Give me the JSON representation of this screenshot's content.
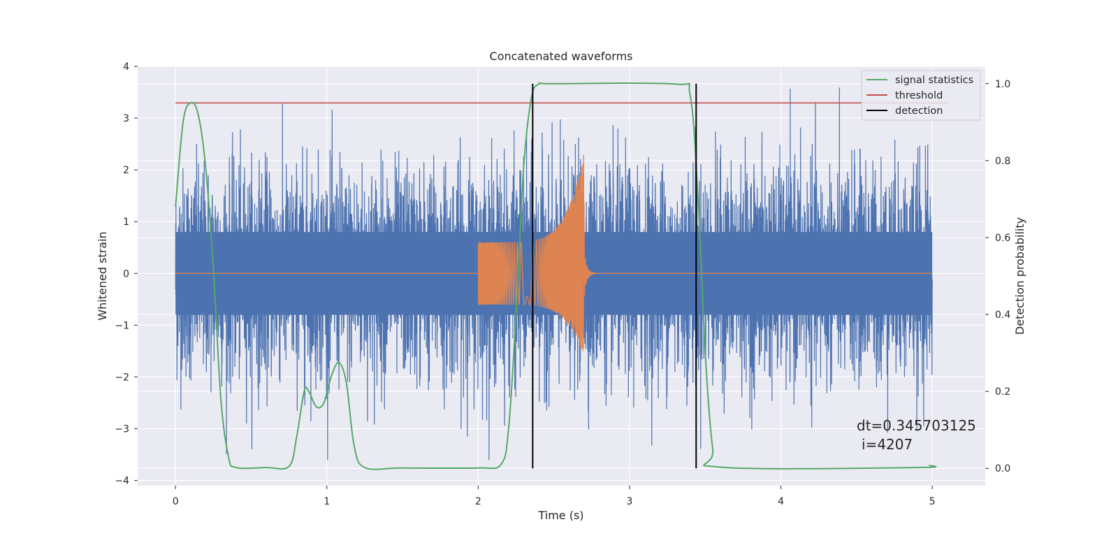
{
  "chart_data": {
    "type": "line",
    "title": "Concatenated waveforms",
    "xlabel": "Time (s)",
    "ylabel": "Whitened strain",
    "ylabel_right": "Detection probability",
    "xlim": [
      -0.25,
      5.35
    ],
    "ylim": [
      -4.1,
      4.0
    ],
    "ylim_right": [
      -0.045,
      1.045
    ],
    "x_ticks": [
      0,
      1,
      2,
      3,
      4,
      5
    ],
    "y_ticks": [
      -4,
      -3,
      -2,
      -1,
      0,
      1,
      2,
      3,
      4
    ],
    "y_right_ticks": [
      0.0,
      0.2,
      0.4,
      0.6,
      0.8,
      1.0
    ],
    "x_tick_labels": [
      "0",
      "1",
      "2",
      "3",
      "4",
      "5"
    ],
    "y_tick_labels": [
      "−4",
      "−3",
      "−2",
      "−1",
      "0",
      "1",
      "2",
      "3",
      "4"
    ],
    "y_right_tick_labels": [
      "0.0",
      "0.2",
      "0.4",
      "0.6",
      "0.8",
      "1.0"
    ],
    "grid": true,
    "legend_position": "top-right",
    "legend": [
      "signal statistics",
      "threshold",
      "detection"
    ],
    "colors": {
      "strain": "#4c72b0",
      "template": "#dd8452",
      "signal_statistics": "#55a868",
      "threshold": "#c44e52",
      "detection": "#000000",
      "background": "#eaeaf2",
      "grid": "#ffffff"
    },
    "strain": {
      "x_range": [
        0,
        5
      ],
      "noise_sigma": 1.0,
      "core_envelope": 0.8,
      "peak_max": 3.6
    },
    "template_waveform": {
      "x_start": 2.0,
      "x_merger": 2.7,
      "x_end": 3.0,
      "start_amplitude": 0.6,
      "merger_max": 2.35,
      "merger_min": -1.6
    },
    "signal_statistics": {
      "x": [
        0.0,
        0.05,
        0.1,
        0.15,
        0.2,
        0.25,
        0.3,
        0.35,
        0.4,
        0.6,
        0.75,
        0.8,
        0.85,
        0.88,
        0.93,
        0.98,
        1.03,
        1.08,
        1.13,
        1.18,
        1.25,
        1.5,
        2.0,
        2.15,
        2.2,
        2.25,
        2.3,
        2.35,
        2.4,
        2.5,
        3.3,
        3.4,
        3.45,
        3.5,
        3.55,
        3.6,
        4.9,
        4.98
      ],
      "y": [
        0.68,
        0.9,
        0.95,
        0.92,
        0.78,
        0.52,
        0.18,
        0.03,
        0.002,
        0.002,
        0.005,
        0.08,
        0.2,
        0.2,
        0.16,
        0.17,
        0.24,
        0.275,
        0.22,
        0.06,
        0.002,
        0.001,
        0.001,
        0.01,
        0.1,
        0.4,
        0.78,
        0.96,
        0.999,
        1.0,
        0.999,
        0.97,
        0.72,
        0.3,
        0.05,
        0.003,
        0.002,
        0.008
      ]
    },
    "threshold": {
      "value": 0.95,
      "x_range": [
        0,
        5.1
      ]
    },
    "detection_times": [
      2.36,
      3.44
    ],
    "annotation": {
      "dt_text": "dt=0.345703125",
      "i_text": "i=4207"
    }
  }
}
